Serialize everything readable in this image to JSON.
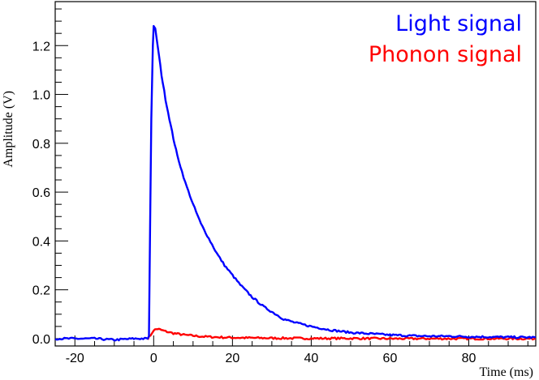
{
  "chart_data": {
    "type": "line",
    "xlabel": "Time (ms)",
    "ylabel": "Amplitude (V)",
    "xlim": [
      -25,
      97
    ],
    "ylim": [
      -0.03,
      1.38
    ],
    "xticks": [
      "-20",
      "0",
      "20",
      "40",
      "60",
      "80"
    ],
    "yticks": [
      "0.0",
      "0.2",
      "0.4",
      "0.6",
      "0.8",
      "1.0",
      "1.2"
    ],
    "grid": false,
    "legend_position": "top-right",
    "series": [
      {
        "name": "Light signal",
        "color": "#0000ff",
        "x": [
          -25,
          -20,
          -15,
          -10,
          -5,
          -1.5,
          -1.2,
          -0.6,
          -0.2,
          0,
          0.4,
          1,
          2,
          3,
          4,
          5,
          6,
          8,
          10,
          12,
          14,
          16,
          18,
          20,
          22,
          25,
          28,
          30,
          33,
          36,
          40,
          45,
          50,
          55,
          60,
          65,
          70,
          75,
          80,
          85,
          90,
          97
        ],
        "y": [
          0.0,
          0.0,
          0.0,
          -0.005,
          0.0,
          0.0,
          0.01,
          0.9,
          1.2,
          1.28,
          1.27,
          1.2,
          1.08,
          0.98,
          0.9,
          0.82,
          0.75,
          0.64,
          0.55,
          0.47,
          0.41,
          0.35,
          0.3,
          0.26,
          0.22,
          0.17,
          0.13,
          0.11,
          0.08,
          0.065,
          0.05,
          0.035,
          0.025,
          0.02,
          0.015,
          0.012,
          0.01,
          0.01,
          0.008,
          0.007,
          0.006,
          0.005
        ]
      },
      {
        "name": "Phonon signal",
        "color": "#ff0000",
        "x": [
          -1.5,
          -0.5,
          0,
          1,
          2,
          3,
          5,
          8,
          12,
          16,
          20,
          25,
          30,
          40,
          50,
          60,
          70,
          80,
          90,
          97
        ],
        "y": [
          0.0,
          0.02,
          0.035,
          0.04,
          0.035,
          0.03,
          0.022,
          0.015,
          0.009,
          0.006,
          0.004,
          0.003,
          0.002,
          0.001,
          0.001,
          0.0,
          0.0,
          0.0,
          0.0,
          0.0
        ]
      }
    ]
  }
}
